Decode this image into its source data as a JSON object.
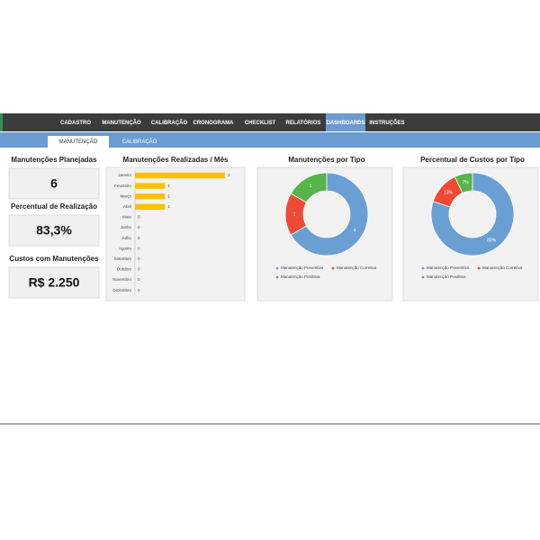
{
  "nav": {
    "items": [
      "CADASTRO",
      "MANUTENÇÃO",
      "CALIBRAÇÃO",
      "CRONOGRAMA",
      "CHECKLIST",
      "RELATÓRIOS",
      "DASHBOARDS",
      "INSTRUÇÕES"
    ],
    "active_index": 6
  },
  "subnav": {
    "tabs": [
      "MANUTENÇÃO",
      "CALIBRAÇÃO"
    ],
    "active_index": 0
  },
  "kpis": [
    {
      "title": "Manutenções Planejadas",
      "value": "6"
    },
    {
      "title": "Percentual de Realização",
      "value": "83,3%"
    },
    {
      "title": "Custos com Manutenções",
      "value": "R$ 2.250"
    }
  ],
  "chart_data": [
    {
      "type": "bar",
      "title": "Manutenções Realizadas / Mês",
      "orientation": "horizontal",
      "color": "#ffc000",
      "categories": [
        "Janeiro",
        "Fevereiro",
        "Março",
        "Abril",
        "Maio",
        "Junho",
        "Julho",
        "Agosto",
        "Setembro",
        "Outubro",
        "Novembro",
        "Dezembro"
      ],
      "values": [
        3,
        1,
        1,
        1,
        0,
        0,
        0,
        0,
        0,
        0,
        0,
        0
      ]
    },
    {
      "type": "pie",
      "title": "Manutenções por Tipo",
      "donut": true,
      "categories": [
        "Manutenção Preventiva",
        "Manutenção Corretiva",
        "Manutenção Preditiva"
      ],
      "colors": [
        "#6a9fd4",
        "#f04a35",
        "#55b54a"
      ],
      "values": [
        4,
        1,
        1
      ]
    },
    {
      "type": "pie",
      "title": "Percentual de Custos por Tipo",
      "donut": true,
      "categories": [
        "Manutenção Preventiva",
        "Manutenção Corretiva",
        "Manutenção Preditiva"
      ],
      "colors": [
        "#6a9fd4",
        "#f04a35",
        "#55b54a"
      ],
      "values": [
        80,
        13,
        7
      ],
      "value_labels": [
        "80%",
        "13%",
        "7%"
      ]
    }
  ]
}
